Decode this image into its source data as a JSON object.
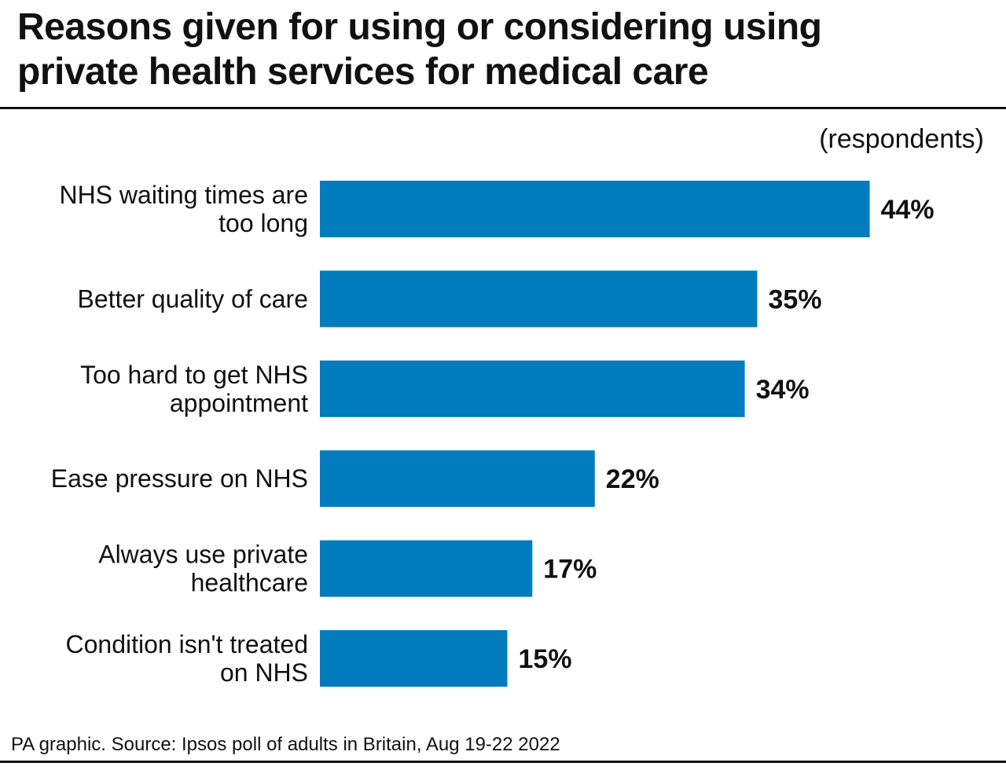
{
  "title_lines": [
    "Reasons given for using or considering using",
    "private health services for medical care"
  ],
  "unit_note": "(respondents)",
  "source": "PA graphic. Source: Ipsos poll of adults in Britain, Aug 19-22 2022",
  "colors": {
    "bar": "#027cbd",
    "text": "#111111",
    "rule": "#111111"
  },
  "chart_data": {
    "type": "bar",
    "orientation": "horizontal",
    "categories": [
      [
        "NHS waiting times are",
        "too long"
      ],
      [
        "Better quality of care"
      ],
      [
        "Too hard to get NHS",
        "appointment"
      ],
      [
        "Ease pressure on NHS"
      ],
      [
        "Always use private",
        "healthcare"
      ],
      [
        "Condition isn't treated",
        "on NHS"
      ]
    ],
    "values": [
      44,
      35,
      34,
      22,
      17,
      15
    ],
    "value_labels": [
      "44%",
      "35%",
      "34%",
      "22%",
      "17%",
      "15%"
    ],
    "unit": "%",
    "grid": false,
    "legend": "none"
  }
}
